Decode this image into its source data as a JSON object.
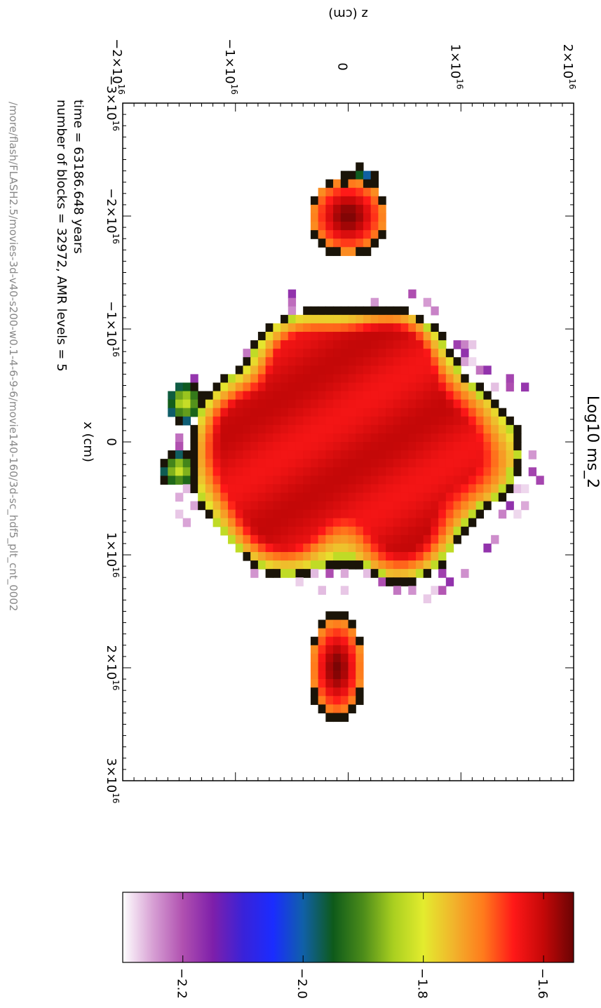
{
  "chart_data": {
    "type": "heatmap",
    "title": "Log10 ms_2",
    "xlabel": "x (cm)",
    "ylabel": "z (cm)",
    "xlim": [
      -3e+16,
      3e+16
    ],
    "ylim": [
      -2e+16,
      2e+16
    ],
    "x_ticks": [
      {
        "value": -3e+16,
        "mantissa": "−3×10",
        "exp": "16"
      },
      {
        "value": -2e+16,
        "mantissa": "−2×10",
        "exp": "16"
      },
      {
        "value": -1e+16,
        "mantissa": "−1×10",
        "exp": "16"
      },
      {
        "value": 0,
        "mantissa": "0",
        "exp": ""
      },
      {
        "value": 1e+16,
        "mantissa": "1×10",
        "exp": "16"
      },
      {
        "value": 2e+16,
        "mantissa": "2×10",
        "exp": "16"
      },
      {
        "value": 3e+16,
        "mantissa": "3×10",
        "exp": "16"
      }
    ],
    "y_ticks": [
      {
        "value": -2e+16,
        "mantissa": "−2×10",
        "exp": "16"
      },
      {
        "value": -1e+16,
        "mantissa": "−1×10",
        "exp": "16"
      },
      {
        "value": 0,
        "mantissa": "0",
        "exp": ""
      },
      {
        "value": 1e+16,
        "mantissa": "1×10",
        "exp": "16"
      },
      {
        "value": 2e+16,
        "mantissa": "2×10",
        "exp": "16"
      }
    ],
    "colorbar": {
      "min": -2.3,
      "max": -1.55,
      "ticks": [
        {
          "value": -2.2,
          "label": "−2.2"
        },
        {
          "value": -2.0,
          "label": "−2.0"
        },
        {
          "value": -1.8,
          "label": "−1.8"
        },
        {
          "value": -1.6,
          "label": "−1.6"
        }
      ],
      "colors": [
        "#ffffff",
        "#d7a0d4",
        "#b050b0",
        "#7e1faa",
        "#3a22d8",
        "#1a2cff",
        "#1060a8",
        "#0e5a1a",
        "#4c8c1a",
        "#a9cf20",
        "#e3ec2e",
        "#f1b42c",
        "#ff7a1c",
        "#ff1818",
        "#c40808",
        "#6a0404"
      ]
    },
    "blobs": [
      {
        "name": "main-body",
        "x_min": -1.2e+16,
        "x_max": 1.4e+16,
        "z_min": -1.2e+16,
        "z_max": 1.55e+16,
        "peak": -1.62
      },
      {
        "name": "top-clump",
        "x_center": -2e+16,
        "z_center": 0.0,
        "peak": -1.56
      },
      {
        "name": "bottom-clump",
        "x_center": 2e+16,
        "z_center": -1000000000000000.0,
        "peak": -1.55
      },
      {
        "name": "small-clump-top",
        "x_center": -2.3e+16,
        "z_center": 1000000000000000.0,
        "peak": -1.9
      },
      {
        "name": "small-left-a",
        "x_center": -3500000000000000.0,
        "z_center": -1.45e+16,
        "peak": -1.82
      },
      {
        "name": "small-left-b",
        "x_center": 2500000000000000.0,
        "z_center": -1.5e+16,
        "peak": -1.82
      }
    ]
  },
  "info": {
    "time_line": "time =   63186.648  years",
    "blocks_line": "number of blocks =    32972, AMR levels =      5",
    "path": "/more/flash/FLASH2.5/movies-3d-v40-s200-w0.1-4-6-9-6/movie140-160/3d-sc_hdf5_plt_cnt_0002"
  }
}
